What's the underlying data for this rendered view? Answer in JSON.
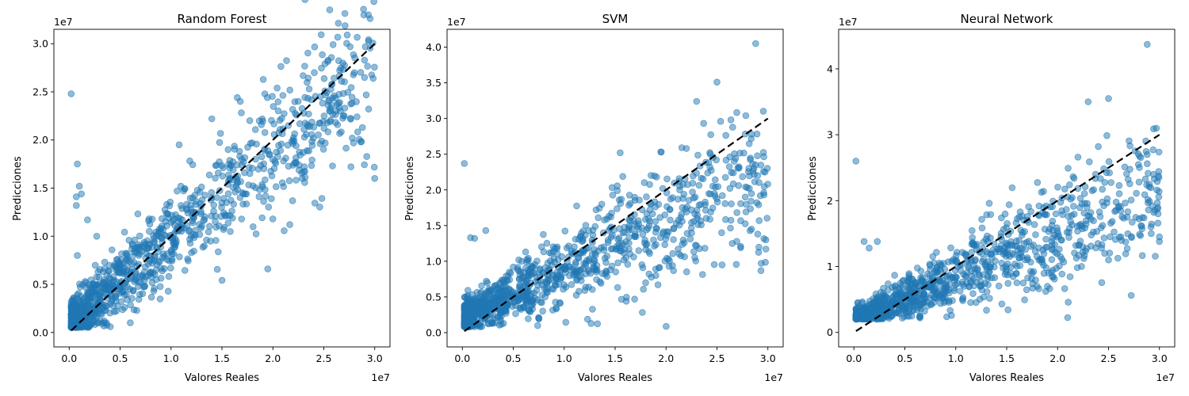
{
  "figure": {
    "background": "#ffffff",
    "point_color": "#1f77b4",
    "reference_line_color": "#000000"
  },
  "chart_data": [
    {
      "type": "scatter",
      "title": "Random Forest",
      "xlabel": "Valores Reales",
      "ylabel": "Predicciones",
      "x_offset_label": "1e7",
      "y_offset_label": "1e7",
      "xlim": [
        -0.15,
        3.15
      ],
      "ylim": [
        -0.15,
        3.15
      ],
      "x_ticks": [
        0,
        0.5,
        1,
        1.5,
        2,
        2.5,
        3
      ],
      "x_tick_labels": [
        "0.0",
        "0.5",
        "1.0",
        "1.5",
        "2.0",
        "2.5",
        "3.0"
      ],
      "y_ticks": [
        0,
        0.5,
        1,
        1.5,
        2,
        2.5,
        3
      ],
      "y_tick_labels": [
        "0.0",
        "0.5",
        "1.0",
        "1.5",
        "2.0",
        "2.5",
        "3.0"
      ],
      "reference_line": {
        "x": [
          0.02,
          3.0
        ],
        "y": [
          0.02,
          3.0
        ],
        "style": "dashed"
      },
      "generator": {
        "seed": 11,
        "count": 1150,
        "slope": 0.9,
        "intercept": 0.08,
        "noise": 0.12,
        "noise_scale": 0.11,
        "min_pred": 0.05
      },
      "outliers": [
        {
          "x": 0.02,
          "y": 2.48
        },
        {
          "x": 0.08,
          "y": 1.75
        },
        {
          "x": 0.07,
          "y": 1.41
        },
        {
          "x": 0.1,
          "y": 1.52
        },
        {
          "x": 0.12,
          "y": 1.44
        },
        {
          "x": 0.07,
          "y": 1.32
        },
        {
          "x": 0.18,
          "y": 1.17
        },
        {
          "x": 0.27,
          "y": 1.0
        },
        {
          "x": 0.08,
          "y": 0.8
        },
        {
          "x": 1.95,
          "y": 0.66
        },
        {
          "x": 0.6,
          "y": 0.1
        },
        {
          "x": 3.0,
          "y": 1.6
        },
        {
          "x": 2.9,
          "y": 2.83
        },
        {
          "x": 2.9,
          "y": 2.65
        },
        {
          "x": 2.8,
          "y": 2.7
        },
        {
          "x": 2.58,
          "y": 2.58
        },
        {
          "x": 2.0,
          "y": 1.18
        },
        {
          "x": 1.68,
          "y": 2.4
        },
        {
          "x": 1.4,
          "y": 2.22
        },
        {
          "x": 1.08,
          "y": 1.95
        }
      ]
    },
    {
      "type": "scatter",
      "title": "SVM",
      "xlabel": "Valores Reales",
      "ylabel": "Predicciones",
      "x_offset_label": "1e7",
      "y_offset_label": "1e7",
      "xlim": [
        -0.15,
        3.15
      ],
      "ylim": [
        -0.2,
        4.25
      ],
      "x_ticks": [
        0,
        0.5,
        1,
        1.5,
        2,
        2.5,
        3
      ],
      "x_tick_labels": [
        "0.0",
        "0.5",
        "1.0",
        "1.5",
        "2.0",
        "2.5",
        "3.0"
      ],
      "y_ticks": [
        0,
        0.5,
        1,
        1.5,
        2,
        2.5,
        3,
        3.5,
        4
      ],
      "y_tick_labels": [
        "0.0",
        "0.5",
        "1.0",
        "1.5",
        "2.0",
        "2.5",
        "3.0",
        "3.5",
        "4.0"
      ],
      "reference_line": {
        "x": [
          0.02,
          3.0
        ],
        "y": [
          0.02,
          3.0
        ],
        "style": "dashed"
      },
      "generator": {
        "seed": 23,
        "count": 1150,
        "slope": 0.66,
        "intercept": 0.2,
        "noise": 0.1,
        "noise_scale": 0.16,
        "min_pred": 0.08
      },
      "outliers": [
        {
          "x": 0.02,
          "y": 2.37
        },
        {
          "x": 2.88,
          "y": 4.05
        },
        {
          "x": 2.5,
          "y": 3.51
        },
        {
          "x": 2.3,
          "y": 3.24
        },
        {
          "x": 2.84,
          "y": 2.78
        },
        {
          "x": 2.2,
          "y": 2.58
        },
        {
          "x": 1.55,
          "y": 2.52
        },
        {
          "x": 2.88,
          "y": 2.35
        },
        {
          "x": 2.9,
          "y": 2.2
        },
        {
          "x": 0.08,
          "y": 1.33
        },
        {
          "x": 0.23,
          "y": 1.43
        },
        {
          "x": 0.12,
          "y": 1.32
        },
        {
          "x": 2.98,
          "y": 1.17
        },
        {
          "x": 2.98,
          "y": 1.3
        },
        {
          "x": 2.9,
          "y": 1.38
        },
        {
          "x": 1.9,
          "y": 0.8
        },
        {
          "x": 1.8,
          "y": 0.7
        },
        {
          "x": 2.55,
          "y": 0.95
        }
      ]
    },
    {
      "type": "scatter",
      "title": "Neural Network",
      "xlabel": "Valores Reales",
      "ylabel": "Predicciones",
      "x_offset_label": "1e7",
      "y_offset_label": "1e7",
      "xlim": [
        -0.15,
        3.15
      ],
      "ylim": [
        -0.22,
        4.6
      ],
      "x_ticks": [
        0,
        0.5,
        1,
        1.5,
        2,
        2.5,
        3
      ],
      "x_tick_labels": [
        "0.0",
        "0.5",
        "1.0",
        "1.5",
        "2.0",
        "2.5",
        "3.0"
      ],
      "y_ticks": [
        0,
        1,
        2,
        3,
        4
      ],
      "y_tick_labels": [
        "0",
        "1",
        "2",
        "3",
        "4"
      ],
      "reference_line": {
        "x": [
          0.02,
          3.0
        ],
        "y": [
          0.02,
          3.0
        ],
        "style": "dashed"
      },
      "generator": {
        "seed": 37,
        "count": 1150,
        "slope": 0.68,
        "intercept": 0.17,
        "noise": 0.09,
        "noise_scale": 0.15,
        "min_pred": 0.2
      },
      "outliers": [
        {
          "x": 0.02,
          "y": 2.6
        },
        {
          "x": 2.88,
          "y": 4.37
        },
        {
          "x": 2.3,
          "y": 3.5
        },
        {
          "x": 2.5,
          "y": 3.55
        },
        {
          "x": 2.4,
          "y": 2.82
        },
        {
          "x": 2.2,
          "y": 2.66
        },
        {
          "x": 2.88,
          "y": 2.56
        },
        {
          "x": 2.88,
          "y": 2.7
        },
        {
          "x": 2.9,
          "y": 2.25
        },
        {
          "x": 0.1,
          "y": 1.38
        },
        {
          "x": 0.23,
          "y": 1.38
        },
        {
          "x": 0.15,
          "y": 1.28
        },
        {
          "x": 3.0,
          "y": 1.45
        },
        {
          "x": 3.0,
          "y": 1.38
        },
        {
          "x": 2.92,
          "y": 1.5
        },
        {
          "x": 1.9,
          "y": 0.7
        },
        {
          "x": 1.8,
          "y": 0.7
        },
        {
          "x": 2.5,
          "y": 1.1
        }
      ]
    }
  ]
}
